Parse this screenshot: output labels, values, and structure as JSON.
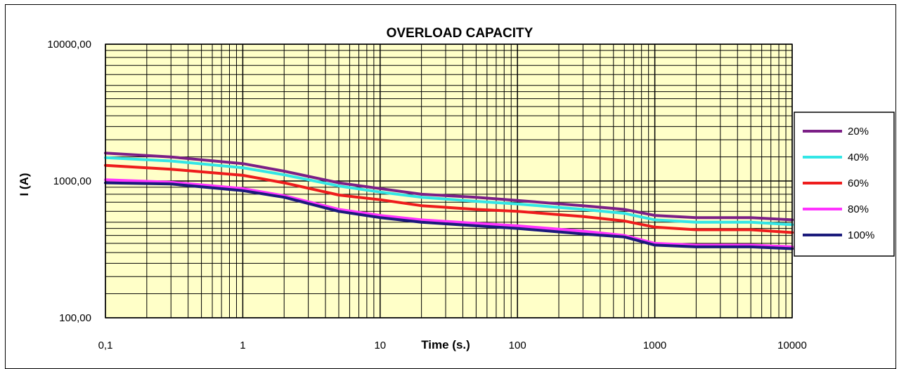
{
  "chart_data": {
    "type": "line",
    "title": "OVERLOAD CAPACITY",
    "xlabel": "Time (s.)",
    "ylabel": "I (A)",
    "x_scale": "log",
    "y_scale": "log",
    "xlim": [
      0.1,
      10000
    ],
    "ylim": [
      100,
      10000
    ],
    "x_tick_labels": [
      "0,1",
      "1",
      "10",
      "100",
      "1000",
      "10000"
    ],
    "y_tick_labels": [
      "100,00",
      "1000,00",
      "10000,00"
    ],
    "grid": true,
    "legend_position": "right",
    "plot_background": "#ffffc8",
    "x": [
      0.1,
      0.3,
      1,
      2,
      5,
      10,
      20,
      50,
      100,
      300,
      600,
      1000,
      2000,
      5000,
      10000
    ],
    "series": [
      {
        "name": "20%",
        "color": "#7b1f86",
        "values": [
          1600,
          1500,
          1340,
          1180,
          970,
          880,
          800,
          760,
          720,
          660,
          620,
          560,
          540,
          540,
          520
        ]
      },
      {
        "name": "40%",
        "color": "#33e6e6",
        "values": [
          1480,
          1400,
          1250,
          1110,
          920,
          830,
          760,
          710,
          680,
          620,
          580,
          520,
          500,
          500,
          480
        ]
      },
      {
        "name": "60%",
        "color": "#ee1c1c",
        "values": [
          1300,
          1220,
          1100,
          970,
          790,
          730,
          660,
          620,
          600,
          550,
          510,
          460,
          440,
          440,
          420
        ]
      },
      {
        "name": "80%",
        "color": "#ff33ff",
        "values": [
          1020,
          980,
          880,
          780,
          620,
          560,
          520,
          490,
          470,
          430,
          400,
          350,
          340,
          340,
          330
        ]
      },
      {
        "name": "100%",
        "color": "#1b1b7c",
        "values": [
          970,
          950,
          850,
          760,
          600,
          540,
          500,
          470,
          450,
          410,
          390,
          340,
          330,
          330,
          320
        ]
      }
    ]
  }
}
